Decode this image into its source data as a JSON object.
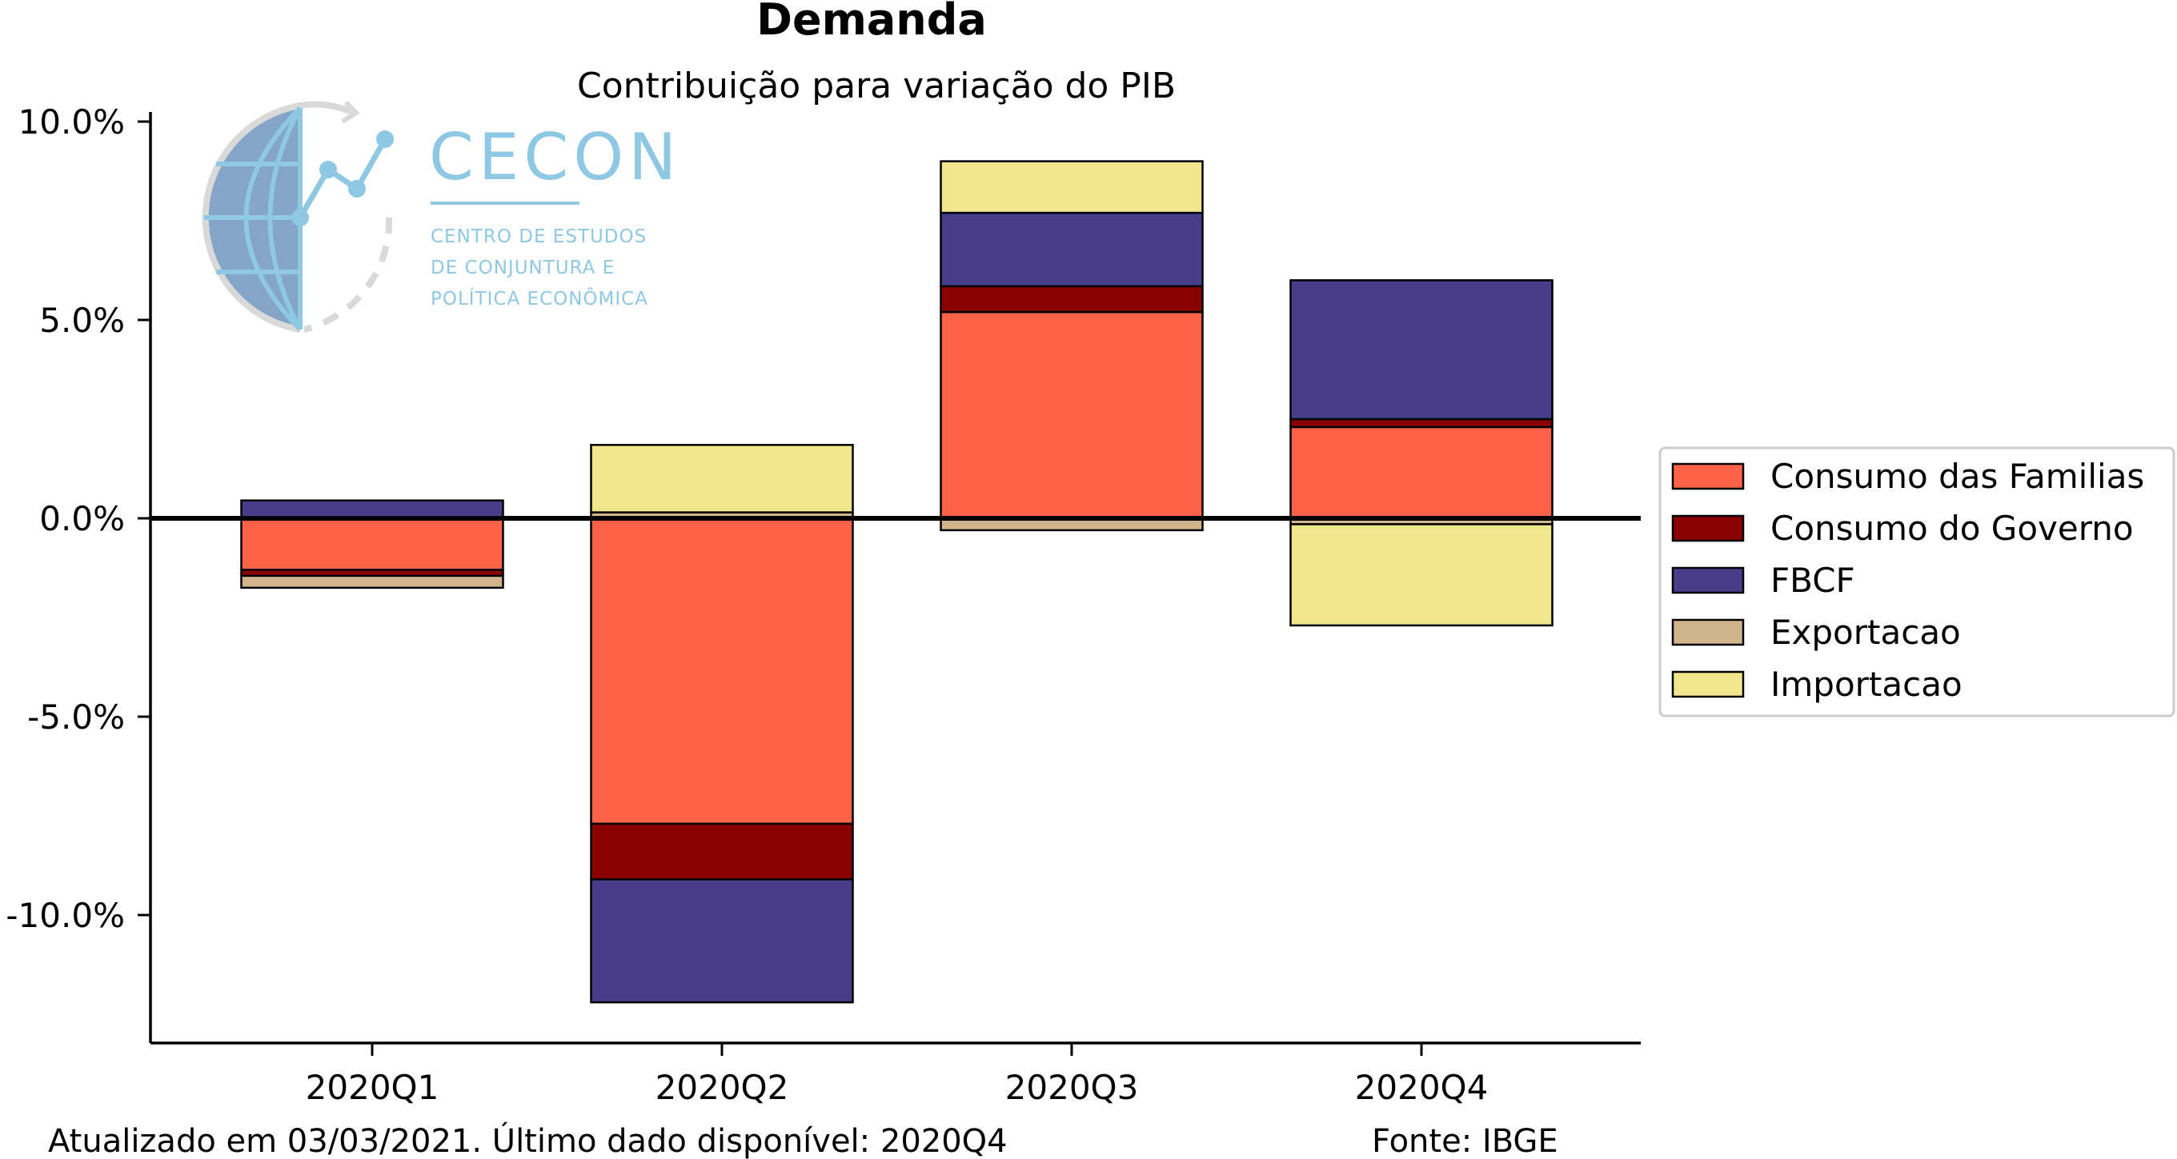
{
  "title": "Demanda",
  "subtitle": "Contribuição para variação do PIB",
  "footer": {
    "updated": "Atualizado em 03/03/2021. Último dado disponível: 2020Q4",
    "source": "Fonte: IBGE"
  },
  "logo": {
    "name": "CECON",
    "line1": "CENTRO DE ESTUDOS",
    "line2": "DE CONJUNTURA E",
    "line3": "POLÍTICA ECONÔMICA",
    "color": "#8ec8e2"
  },
  "chart_data": {
    "type": "bar",
    "stacked": true,
    "categories": [
      "2020Q1",
      "2020Q2",
      "2020Q3",
      "2020Q4"
    ],
    "series": [
      {
        "name": "Consumo das Familias",
        "color": "#ff6347",
        "values": [
          -1.3,
          -7.7,
          5.2,
          2.3
        ]
      },
      {
        "name": "Consumo do Governo",
        "color": "#8b0000",
        "values": [
          -0.15,
          -1.4,
          0.65,
          0.2
        ]
      },
      {
        "name": "FBCF",
        "color": "#483d8b",
        "values": [
          0.45,
          -3.1,
          1.85,
          3.5
        ]
      },
      {
        "name": "Exportacao",
        "color": "#d2b48c",
        "values": [
          -0.3,
          0.15,
          -0.3,
          -0.15
        ]
      },
      {
        "name": "Importacao",
        "color": "#f0e68c",
        "values": [
          0.0,
          1.7,
          1.3,
          -2.55
        ]
      }
    ],
    "yticks": [
      "10.0%",
      "5.0%",
      "0.0%",
      "-5.0%",
      "-10.0%"
    ],
    "ytick_values": [
      10,
      5,
      0,
      -5,
      -10
    ],
    "ylim": [
      -13.3,
      10.3
    ],
    "legend_position": "right",
    "grid": false
  }
}
